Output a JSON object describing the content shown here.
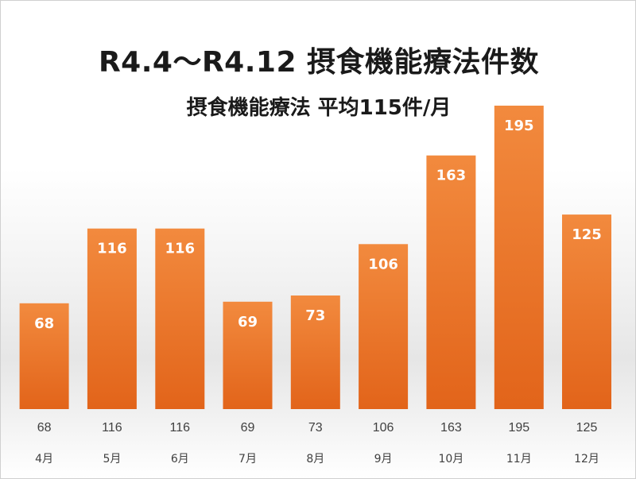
{
  "chart_data": {
    "type": "bar",
    "title": "R4.4～R4.12  摂食機能療法件数",
    "subtitle": "摂食機能療法 平均115件/月",
    "categories": [
      "4月",
      "5月",
      "6月",
      "7月",
      "8月",
      "9月",
      "10月",
      "11月",
      "12月"
    ],
    "values": [
      68,
      116,
      116,
      69,
      73,
      106,
      163,
      195,
      125
    ],
    "ylim": [
      0,
      220
    ],
    "grid": false,
    "data_labels": true,
    "data_table": true,
    "colors": {
      "bar_top": "#f28a3e",
      "bar_bottom": "#e2641a"
    }
  }
}
